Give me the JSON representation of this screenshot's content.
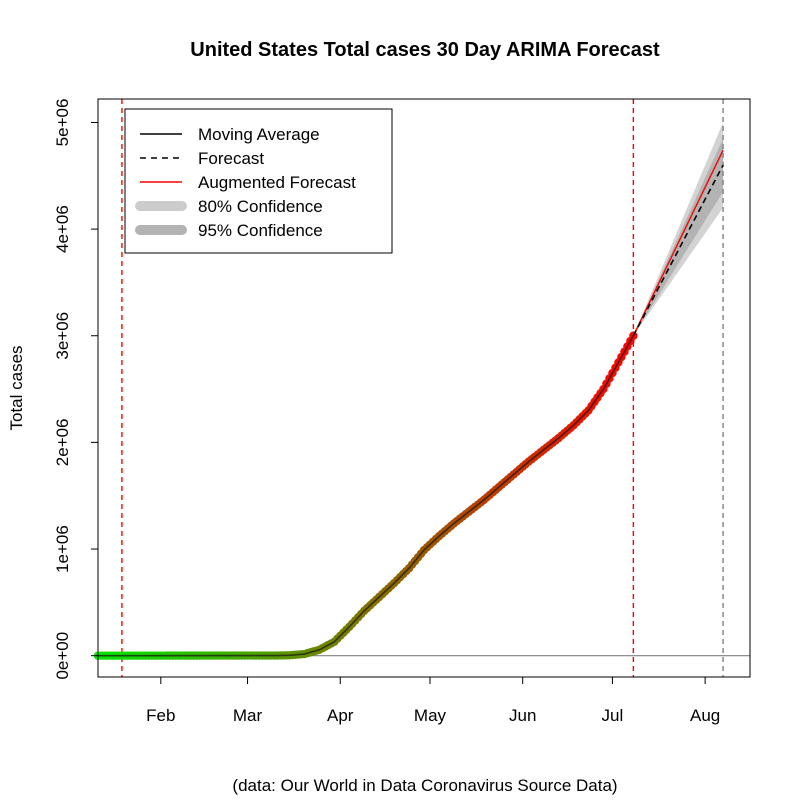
{
  "chart_data": {
    "type": "line",
    "title": "United States Total cases 30 Day ARIMA Forecast",
    "ylabel": "Total cases",
    "caption": "(data: Our World in Data Coronavirus Source Data)",
    "x_range": [
      "2020-01-11",
      "2020-08-16"
    ],
    "ylim": [
      -200000,
      5220000
    ],
    "x_ticks": [
      {
        "date": "2020-02-01",
        "label": "Feb"
      },
      {
        "date": "2020-03-01",
        "label": "Mar"
      },
      {
        "date": "2020-04-01",
        "label": "Apr"
      },
      {
        "date": "2020-05-01",
        "label": "May"
      },
      {
        "date": "2020-06-01",
        "label": "Jun"
      },
      {
        "date": "2020-07-01",
        "label": "Jul"
      },
      {
        "date": "2020-08-01",
        "label": "Aug"
      }
    ],
    "y_ticks": [
      {
        "value": 0,
        "label": "0e+00"
      },
      {
        "value": 1000000,
        "label": "1e+06"
      },
      {
        "value": 2000000,
        "label": "2e+06"
      },
      {
        "value": 3000000,
        "label": "3e+06"
      },
      {
        "value": 4000000,
        "label": "4e+06"
      },
      {
        "value": 5000000,
        "label": "5e+06"
      }
    ],
    "vertical_lines": [
      {
        "date": "2020-01-19",
        "color": "#ff0000"
      },
      {
        "date": "2020-07-08",
        "color": "#ff0000"
      },
      {
        "date": "2020-08-07",
        "color": "#808080"
      }
    ],
    "horizontal_lines": [
      {
        "value": 0,
        "color": "#808080"
      }
    ],
    "moving_average": {
      "name": "Moving Average",
      "color_start": "#00e600",
      "color_end": "#ff0000",
      "points": [
        [
          "2020-01-11",
          0
        ],
        [
          "2020-03-10",
          900
        ],
        [
          "2020-03-15",
          3500
        ],
        [
          "2020-03-20",
          15000
        ],
        [
          "2020-03-25",
          55000
        ],
        [
          "2020-03-30",
          130000
        ],
        [
          "2020-04-04",
          270000
        ],
        [
          "2020-04-09",
          420000
        ],
        [
          "2020-04-14",
          550000
        ],
        [
          "2020-04-19",
          680000
        ],
        [
          "2020-04-24",
          820000
        ],
        [
          "2020-04-29",
          990000
        ],
        [
          "2020-05-04",
          1120000
        ],
        [
          "2020-05-09",
          1240000
        ],
        [
          "2020-05-14",
          1350000
        ],
        [
          "2020-05-19",
          1460000
        ],
        [
          "2020-05-24",
          1580000
        ],
        [
          "2020-05-29",
          1700000
        ],
        [
          "2020-06-03",
          1820000
        ],
        [
          "2020-06-08",
          1930000
        ],
        [
          "2020-06-13",
          2040000
        ],
        [
          "2020-06-18",
          2160000
        ],
        [
          "2020-06-23",
          2300000
        ],
        [
          "2020-06-28",
          2500000
        ],
        [
          "2020-07-03",
          2750000
        ],
        [
          "2020-07-08",
          3000000
        ]
      ]
    },
    "forecast": {
      "name": "Forecast",
      "color": "#000000",
      "points": [
        [
          "2020-07-08",
          3000000
        ],
        [
          "2020-08-07",
          4600000
        ]
      ]
    },
    "augmented_forecast": {
      "name": "Augmented Forecast",
      "color": "#ff0000",
      "points": [
        [
          "2020-07-08",
          3000000
        ],
        [
          "2020-08-07",
          4740000
        ]
      ]
    },
    "confidence_80": {
      "name": "80% Confidence",
      "color": "#b3b3b3",
      "upper": [
        [
          "2020-07-08",
          3000000
        ],
        [
          "2020-08-07",
          4850000
        ]
      ],
      "lower": [
        [
          "2020-07-08",
          3000000
        ],
        [
          "2020-08-07",
          4350000
        ]
      ]
    },
    "confidence_95": {
      "name": "95% Confidence",
      "color": "#d3d3d3",
      "upper": [
        [
          "2020-07-08",
          3000000
        ],
        [
          "2020-08-07",
          5000000
        ]
      ],
      "lower": [
        [
          "2020-07-08",
          3000000
        ],
        [
          "2020-08-07",
          4200000
        ]
      ]
    },
    "legend": {
      "placement": "top-left",
      "items": [
        {
          "label": "Moving Average",
          "style": "solid",
          "color": "#000000"
        },
        {
          "label": "Forecast",
          "style": "dashed",
          "color": "#000000"
        },
        {
          "label": "Augmented Forecast",
          "style": "solid",
          "color": "#ff0000"
        },
        {
          "label": "80% Confidence",
          "style": "thick",
          "color": "#cccccc"
        },
        {
          "label": "95% Confidence",
          "style": "thick",
          "color": "#b3b3b3"
        }
      ]
    },
    "grid": false
  }
}
